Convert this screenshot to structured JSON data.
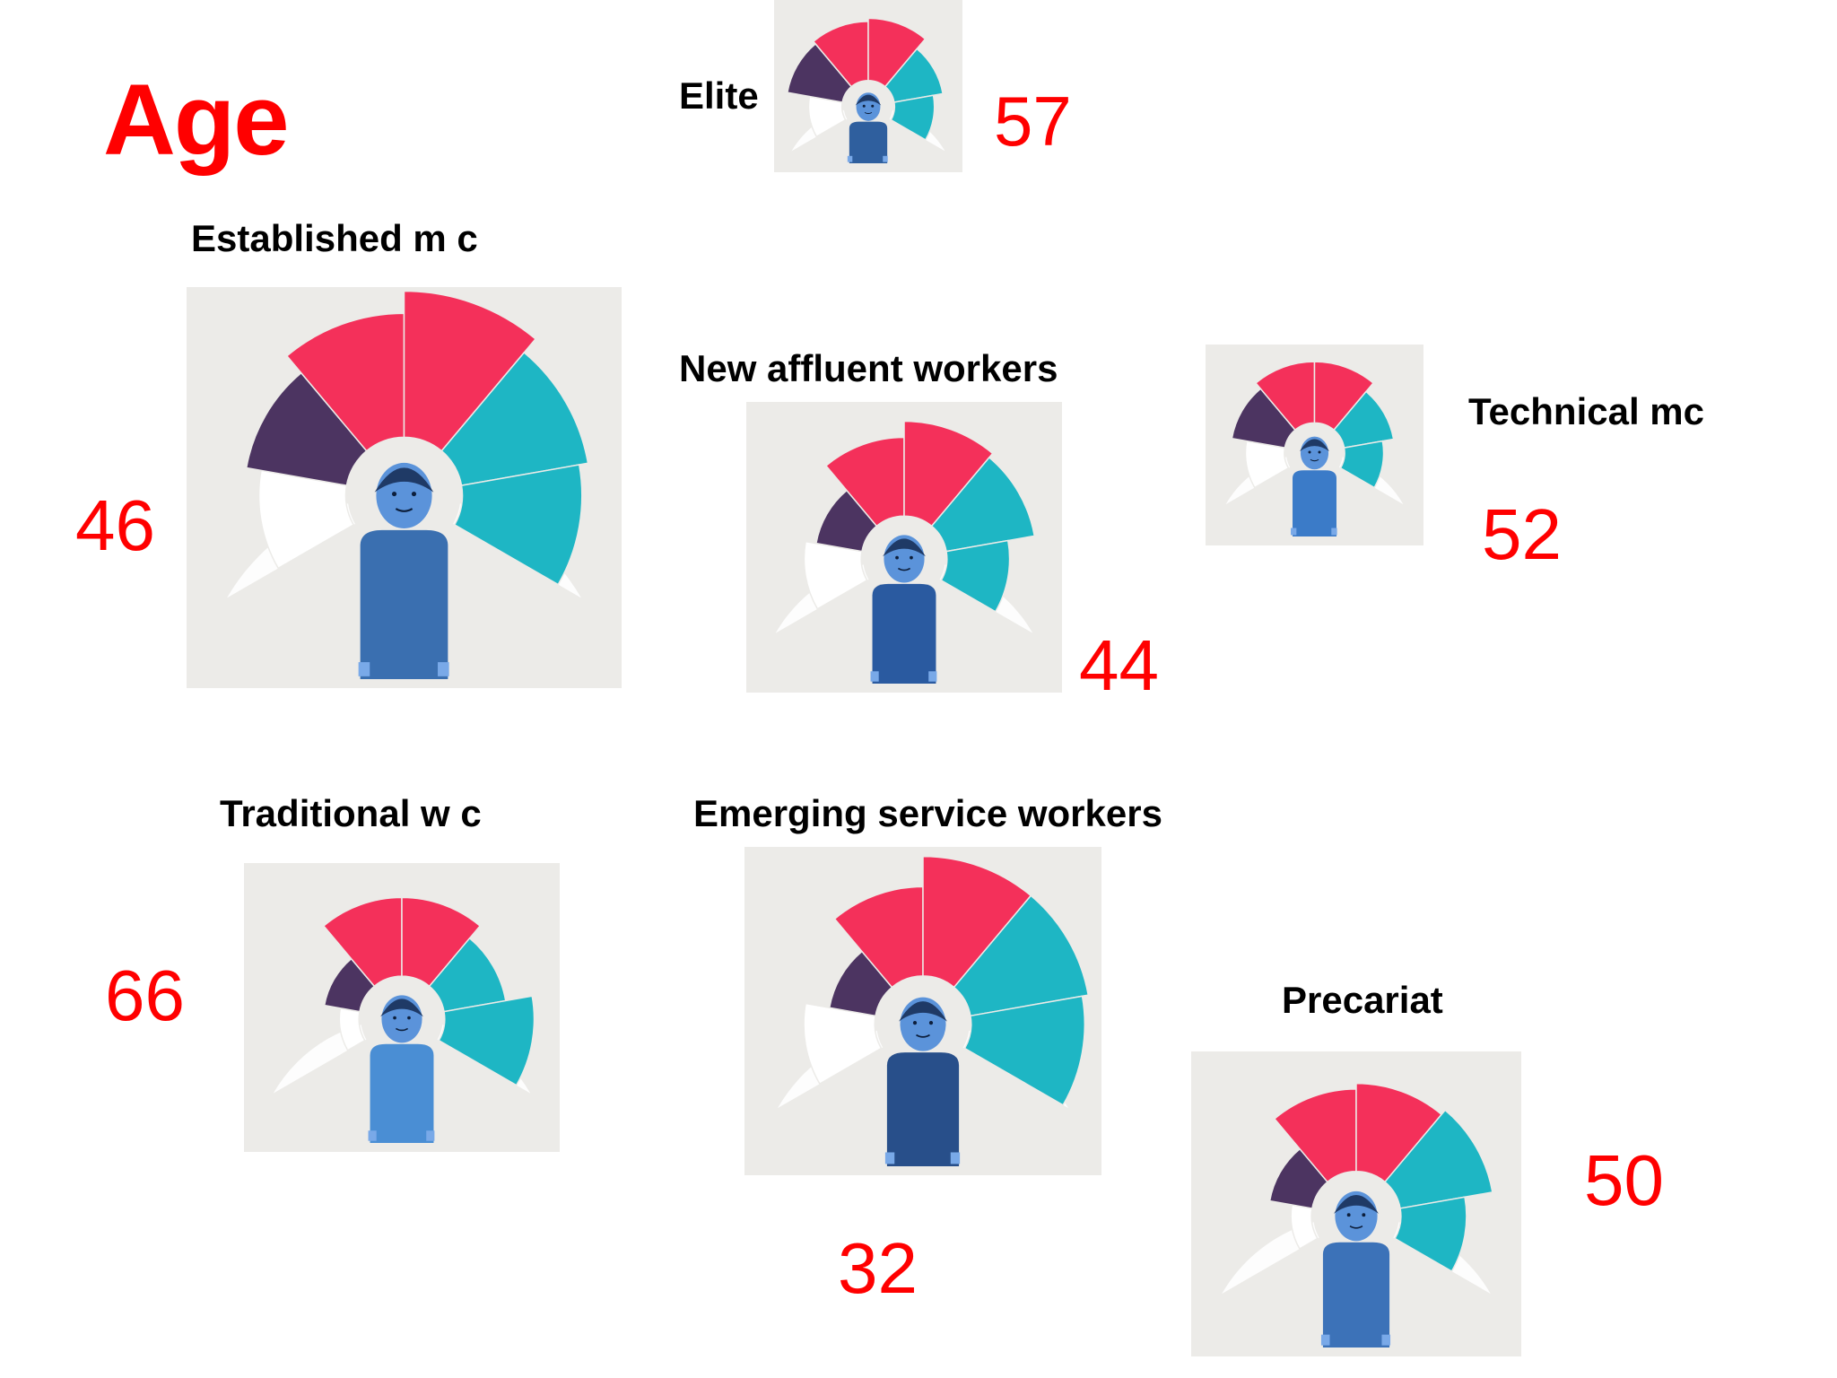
{
  "title": "Age",
  "colors": {
    "age_value": "#ff0000",
    "segment_young": "#ffffff",
    "segment_purple": "#4c3461",
    "segment_red": "#f4305a",
    "segment_teal": "#1eb6c4",
    "figure_blue": "#4a8ed4"
  },
  "groups": [
    {
      "key": "elite",
      "label": "Elite",
      "age": "57",
      "figure": "man-glasses-suit-icon",
      "segments": [
        0.55,
        0.9,
        0.95,
        1.0,
        0.8,
        0.65
      ]
    },
    {
      "key": "established",
      "label": "Established m c",
      "age": "46",
      "figure": "bearded-man-suit-icon",
      "segments": [
        0.6,
        0.7,
        0.85,
        1.0,
        0.88,
        0.82
      ]
    },
    {
      "key": "new_affluent",
      "label": "New affluent workers",
      "age": "44",
      "figure": "man-plaid-shirt-icon",
      "segments": [
        0.55,
        0.45,
        0.75,
        0.9,
        0.85,
        0.6
      ]
    },
    {
      "key": "technical",
      "label": "Technical mc",
      "age": "52",
      "figure": "person-blue-shirt-icon",
      "segments": [
        0.55,
        0.75,
        0.85,
        0.85,
        0.7,
        0.55
      ]
    },
    {
      "key": "traditional",
      "label": "Traditional w c",
      "age": "66",
      "figure": "elderly-woman-icon",
      "segments": [
        0.2,
        0.35,
        0.75,
        0.75,
        0.6,
        0.85
      ]
    },
    {
      "key": "emerging",
      "label": "Emerging service workers",
      "age": "32",
      "figure": "person-hoodie-icon",
      "segments": [
        0.6,
        0.4,
        0.75,
        1.0,
        1.0,
        0.95
      ]
    },
    {
      "key": "precariat",
      "label": "Precariat",
      "age": "50",
      "figure": "woman-blazer-icon",
      "segments": [
        0.2,
        0.4,
        0.75,
        0.8,
        0.85,
        0.6
      ]
    }
  ]
}
